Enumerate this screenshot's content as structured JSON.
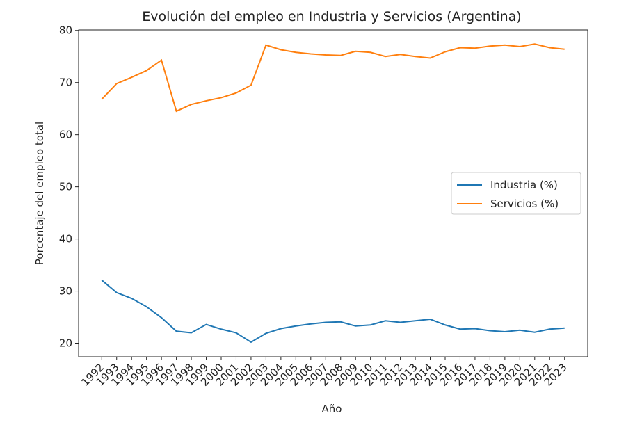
{
  "chart_data": {
    "type": "line",
    "title": "Evolución del empleo en Industria y Servicios (Argentina)",
    "x_label": "Año",
    "y_label": "Porcentaje del empleo total",
    "x": [
      1992,
      1993,
      1994,
      1995,
      1996,
      1997,
      1998,
      1999,
      2000,
      2001,
      2002,
      2003,
      2004,
      2005,
      2006,
      2007,
      2008,
      2009,
      2010,
      2011,
      2012,
      2013,
      2014,
      2015,
      2016,
      2017,
      2018,
      2019,
      2020,
      2021,
      2022,
      2023
    ],
    "series": [
      {
        "name": "Industria (%)",
        "color": "#1f77b4",
        "values": [
          32.1,
          29.7,
          28.6,
          27.0,
          24.9,
          22.3,
          22.0,
          23.6,
          22.7,
          22.0,
          20.2,
          21.9,
          22.8,
          23.3,
          23.7,
          24.0,
          24.1,
          23.3,
          23.5,
          24.3,
          24.0,
          24.3,
          24.6,
          23.5,
          22.7,
          22.8,
          22.4,
          22.2,
          22.5,
          22.1,
          22.7,
          22.9
        ]
      },
      {
        "name": "Servicios (%)",
        "color": "#ff7f0e",
        "values": [
          66.8,
          69.8,
          71.0,
          72.3,
          74.3,
          64.5,
          65.8,
          66.5,
          67.1,
          68.0,
          69.5,
          77.2,
          76.3,
          75.8,
          75.5,
          75.3,
          75.2,
          76.0,
          75.8,
          75.0,
          75.4,
          75.0,
          74.7,
          75.9,
          76.7,
          76.6,
          77.0,
          77.2,
          76.9,
          77.4,
          76.7,
          76.4
        ]
      }
    ],
    "xlim": [
      1990.45,
      2024.55
    ],
    "ylim": [
      17.4,
      80.1
    ],
    "yticks": [
      20,
      30,
      40,
      50,
      60,
      70,
      80
    ],
    "legend": "center right"
  }
}
